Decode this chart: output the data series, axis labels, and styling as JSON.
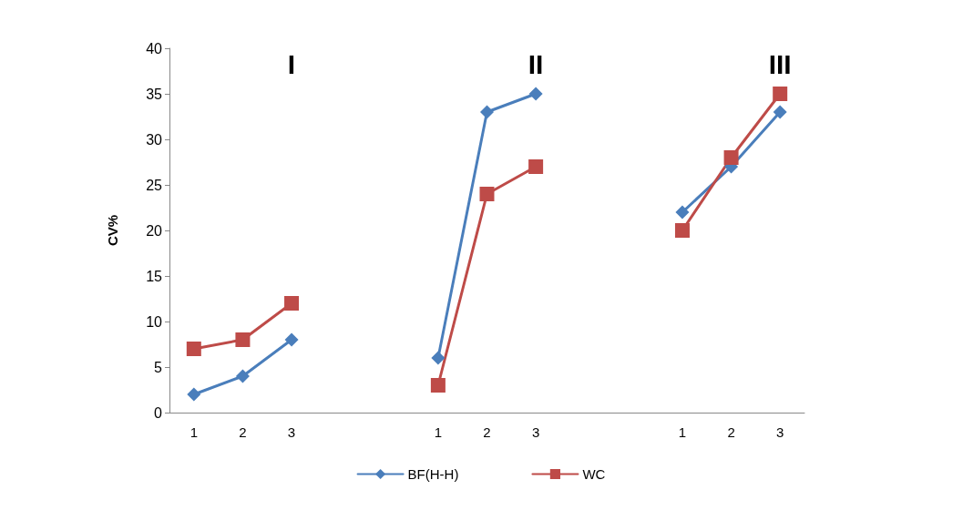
{
  "chart_data": {
    "type": "line",
    "ylabel": "CV%",
    "categories": [
      "1",
      "2",
      "3",
      null,
      null,
      "1",
      "2",
      "3",
      null,
      null,
      "1",
      "2",
      "3"
    ],
    "series": [
      {
        "name": "BF(H-H)",
        "color": "#4a7ebb",
        "marker": "diamond",
        "values": [
          2,
          4,
          8,
          null,
          null,
          6,
          33,
          35,
          null,
          null,
          22,
          27,
          33
        ]
      },
      {
        "name": "WC",
        "color": "#be4b48",
        "marker": "square",
        "values": [
          7,
          8,
          12,
          null,
          null,
          3,
          24,
          27,
          null,
          null,
          20,
          28,
          35
        ]
      }
    ],
    "annotations": [
      "I",
      "II",
      "III"
    ],
    "ylim": [
      0,
      40
    ],
    "yticks": [
      0,
      5,
      10,
      15,
      20,
      25,
      30,
      35,
      40
    ],
    "grid": false,
    "legend": "bottom"
  }
}
